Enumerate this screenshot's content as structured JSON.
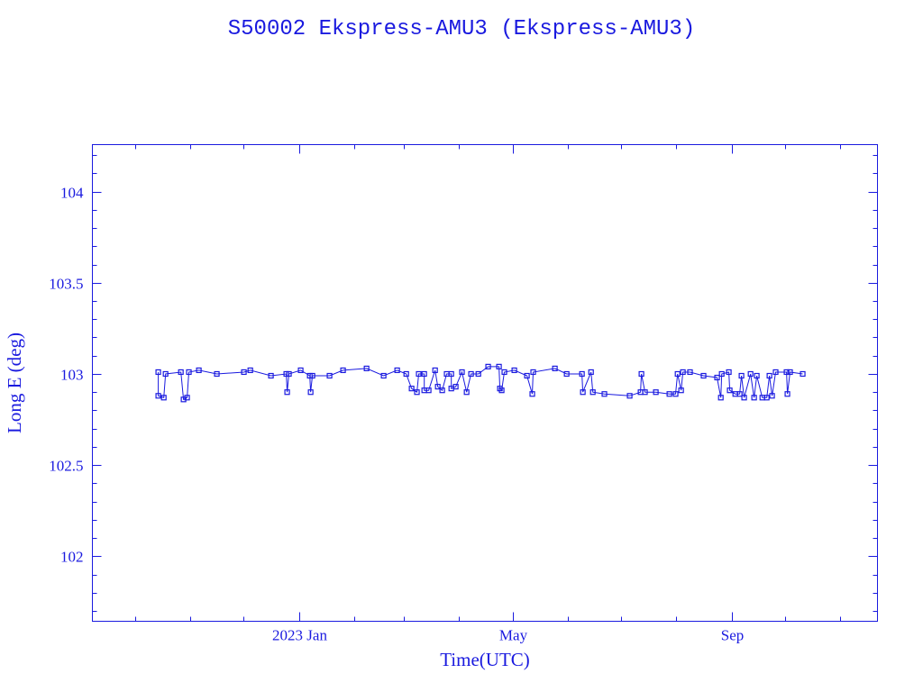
{
  "chart_data": {
    "type": "line",
    "title": "S50002 Ekspress-AMU3  (Ekspress-AMU3)",
    "xlabel": "Time(UTC)",
    "ylabel": "Long E (deg)",
    "x_units": "days since 2023-01-01",
    "xlim": [
      -116,
      325
    ],
    "ylim": [
      101.644,
      104.257
    ],
    "grid": false,
    "color": "#1a1adf",
    "x_major_ticks": [
      {
        "value": 0,
        "label": "2023 Jan"
      },
      {
        "value": 120,
        "label": "May"
      },
      {
        "value": 243,
        "label": "Sep"
      }
    ],
    "x_minor_ticks": [
      -92,
      -61,
      -31,
      31,
      59,
      90,
      151,
      181,
      212,
      273,
      304
    ],
    "y_major_ticks": [
      {
        "value": 102,
        "label": "102"
      },
      {
        "value": 102.5,
        "label": "102.5"
      },
      {
        "value": 103,
        "label": "103"
      },
      {
        "value": 103.5,
        "label": "103.5"
      },
      {
        "value": 104,
        "label": "104"
      }
    ],
    "series": [
      {
        "name": "Ekspress-AMU3",
        "x": [
          -79.0,
          -79.0,
          -75.9,
          -74.9,
          -66.3,
          -64.8,
          -62.8,
          -61.8,
          -56.2,
          -46.1,
          -30.9,
          -27.3,
          -15.7,
          -7.1,
          -6.6,
          -5.6,
          1.0,
          6.1,
          6.6,
          7.6,
          17.2,
          24.8,
          38.0,
          47.6,
          55.2,
          60.3,
          63.3,
          66.3,
          67.3,
          70.4,
          70.4,
          72.9,
          76.5,
          78.0,
          80.5,
          83.0,
          85.6,
          85.6,
          88.1,
          91.6,
          94.2,
          96.7,
          100.8,
          106.3,
          112.4,
          112.9,
          113.9,
          115.4,
          121.0,
          128.1,
          131.1,
          131.6,
          143.8,
          150.4,
          159.0,
          159.5,
          164.1,
          165.1,
          171.6,
          185.8,
          191.9,
          192.4,
          194.4,
          200.5,
          208.1,
          211.6,
          212.7,
          214.7,
          215.7,
          219.7,
          227.3,
          234.9,
          237.0,
          237.5,
          241.5,
          242.0,
          245.1,
          247.6,
          248.6,
          250.1,
          253.7,
          255.7,
          257.2,
          260.3,
          262.8,
          264.3,
          265.8,
          267.8,
          273.9,
          274.4,
          275.9,
          283.0
        ],
        "y": [
          103.01,
          102.88,
          102.87,
          103.0,
          103.01,
          102.86,
          102.87,
          103.01,
          103.02,
          103.0,
          103.01,
          103.02,
          102.99,
          103.0,
          102.9,
          103.0,
          103.02,
          102.99,
          102.9,
          102.99,
          102.99,
          103.02,
          103.03,
          102.99,
          103.02,
          103.0,
          102.92,
          102.9,
          103.0,
          103.0,
          102.91,
          102.91,
          103.02,
          102.93,
          102.91,
          103.0,
          103.0,
          102.92,
          102.93,
          103.01,
          102.9,
          103.0,
          103.0,
          103.04,
          103.04,
          102.92,
          102.91,
          103.01,
          103.02,
          102.99,
          102.89,
          103.01,
          103.03,
          103.0,
          103.0,
          102.9,
          103.01,
          102.9,
          102.89,
          102.88,
          102.9,
          103.0,
          102.9,
          102.9,
          102.89,
          102.89,
          103.0,
          102.91,
          103.01,
          103.01,
          102.99,
          102.98,
          102.87,
          103.0,
          103.01,
          102.91,
          102.89,
          102.89,
          102.99,
          102.87,
          103.0,
          102.87,
          102.99,
          102.87,
          102.87,
          102.99,
          102.88,
          103.01,
          103.01,
          102.89,
          103.01,
          103.0
        ]
      }
    ]
  }
}
